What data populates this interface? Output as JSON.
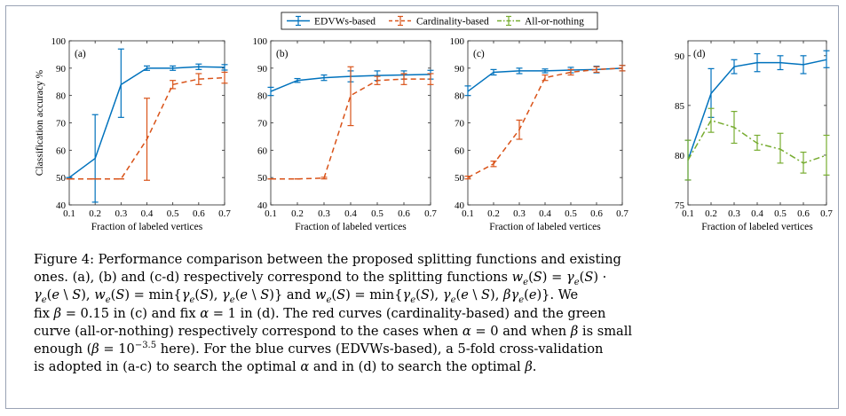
{
  "legend": {
    "entries": [
      {
        "name": "EDVWs-based",
        "color": "#0072bd",
        "style": "solid"
      },
      {
        "name": "Cardinality-based",
        "color": "#d95319",
        "style": "dashed"
      },
      {
        "name": "All-or-nothing",
        "color": "#77ac30",
        "style": "dashdot"
      }
    ],
    "placement": "top-center"
  },
  "chart_data": [
    {
      "type": "line",
      "panel_label": "(a)",
      "xlabel": "Fraction of labeled vertices",
      "ylabel": "Classification accuracy %",
      "xlim": [
        0.1,
        0.7
      ],
      "ylim": [
        40,
        100
      ],
      "xticks": [
        "0.1",
        "0.2",
        "0.3",
        "0.4",
        "0.5",
        "0.6",
        "0.7"
      ],
      "yticks": [
        "40",
        "50",
        "60",
        "70",
        "80",
        "90",
        "100"
      ],
      "grid": false,
      "x": [
        0.1,
        0.2,
        0.3,
        0.4,
        0.5,
        0.6,
        0.7
      ],
      "series": [
        {
          "name": "EDVWs-based",
          "values": [
            50,
            57,
            84,
            90,
            90,
            90.5,
            90.3
          ],
          "low": [
            50,
            41,
            72,
            89.2,
            89.2,
            89.5,
            89.3
          ],
          "high": [
            50,
            73,
            97,
            90.8,
            90.8,
            91.5,
            91.3
          ]
        },
        {
          "name": "Cardinality-based",
          "values": [
            49.5,
            49.5,
            49.5,
            64,
            84,
            86,
            86.5
          ],
          "low": [
            49.5,
            49.5,
            49.5,
            49,
            82.5,
            84,
            84.5
          ],
          "high": [
            49.5,
            49.5,
            49.5,
            79,
            85.5,
            88,
            88.5
          ]
        }
      ]
    },
    {
      "type": "line",
      "panel_label": "(b)",
      "xlabel": "Fraction of labeled vertices",
      "ylabel": "",
      "xlim": [
        0.1,
        0.7
      ],
      "ylim": [
        40,
        100
      ],
      "xticks": [
        "0.1",
        "0.2",
        "0.3",
        "0.4",
        "0.5",
        "0.6",
        "0.7"
      ],
      "yticks": [
        "40",
        "50",
        "60",
        "70",
        "80",
        "90",
        "100"
      ],
      "grid": false,
      "x": [
        0.1,
        0.2,
        0.3,
        0.4,
        0.5,
        0.6,
        0.7
      ],
      "series": [
        {
          "name": "EDVWs-based",
          "values": [
            81.5,
            85.5,
            86.5,
            87,
            87.3,
            87.5,
            87.7
          ],
          "low": [
            80,
            84.8,
            85.5,
            85,
            85.5,
            86,
            86
          ],
          "high": [
            83,
            86.2,
            87.5,
            89,
            89,
            89,
            89.2
          ]
        },
        {
          "name": "Cardinality-based",
          "values": [
            49.5,
            49.5,
            49.8,
            80,
            85.5,
            86,
            86
          ],
          "low": [
            49.5,
            49.5,
            49.5,
            69,
            84,
            84,
            84
          ],
          "high": [
            49.5,
            49.5,
            50.1,
            90.5,
            87,
            88,
            88
          ]
        }
      ]
    },
    {
      "type": "line",
      "panel_label": "(c)",
      "xlabel": "Fraction of labeled vertices",
      "ylabel": "",
      "xlim": [
        0.1,
        0.7
      ],
      "ylim": [
        40,
        100
      ],
      "xticks": [
        "0.1",
        "0.2",
        "0.3",
        "0.4",
        "0.5",
        "0.6",
        "0.7"
      ],
      "yticks": [
        "40",
        "50",
        "60",
        "70",
        "80",
        "90",
        "100"
      ],
      "grid": false,
      "x": [
        0.1,
        0.2,
        0.3,
        0.4,
        0.5,
        0.6,
        0.7
      ],
      "series": [
        {
          "name": "EDVWs-based",
          "values": [
            81.5,
            88.5,
            89,
            89,
            89.3,
            89.5,
            90
          ],
          "low": [
            80,
            87.5,
            88,
            88.3,
            88.3,
            88.3,
            89
          ],
          "high": [
            83.5,
            89.5,
            90,
            89.7,
            90.3,
            90.7,
            91
          ]
        },
        {
          "name": "Cardinality-based",
          "values": [
            50,
            55,
            67.5,
            86.5,
            88.5,
            89.5,
            90
          ],
          "low": [
            49.5,
            54,
            64,
            85.5,
            87.5,
            88.5,
            89
          ],
          "high": [
            50.5,
            56,
            71,
            87.5,
            89.5,
            90.5,
            91
          ]
        }
      ]
    },
    {
      "type": "line",
      "panel_label": "(d)",
      "xlabel": "Fraction of labeled vertices",
      "ylabel": "",
      "xlim": [
        0.1,
        0.7
      ],
      "ylim": [
        75,
        91.5
      ],
      "xticks": [
        "0.1",
        "0.2",
        "0.3",
        "0.4",
        "0.5",
        "0.6",
        "0.7"
      ],
      "yticks": [
        "75",
        "80",
        "85",
        "90"
      ],
      "grid": false,
      "x": [
        0.1,
        0.2,
        0.3,
        0.4,
        0.5,
        0.6,
        0.7
      ],
      "series": [
        {
          "name": "EDVWs-based",
          "values": [
            79.5,
            86.2,
            88.9,
            89.3,
            89.3,
            89.1,
            89.6
          ],
          "low": [
            77.5,
            83.8,
            88.2,
            88.4,
            88.6,
            88.2,
            88.8
          ],
          "high": [
            81.5,
            88.7,
            89.6,
            90.2,
            90,
            90,
            90.5
          ]
        },
        {
          "name": "All-or-nothing",
          "values": [
            79.5,
            83.5,
            82.8,
            81.2,
            80.6,
            79.2,
            80
          ],
          "low": [
            77.5,
            82.3,
            81.2,
            80.5,
            79.2,
            78.2,
            78
          ],
          "high": [
            81.5,
            84.7,
            84.4,
            82,
            82.2,
            80.3,
            82
          ]
        }
      ]
    }
  ],
  "caption": {
    "lines": [
      [
        "Figure 4: Performance comparison between the proposed splitting functions and existing"
      ],
      [
        "ones. (a), (b) and (c-d) respectively correspond to the splitting functions ",
        "w_e(S) = γ_e(S) ·"
      ],
      [
        "γ_e(e \\ S)",
        ", ",
        "w_e(S) = min{γ_e(S), γ_e(e \\ S)}",
        " and ",
        "w_e(S) = min{γ_e(S), γ_e(e \\ S), βγ_e(e)}",
        ". We"
      ],
      [
        "fix ",
        "β = 0.15",
        " in (c) and fix ",
        "α = 1",
        " in (d). The red curves (cardinality-based) and the green"
      ],
      [
        "curve (all-or-nothing) respectively correspond to the cases when ",
        "α = 0",
        " and when ",
        "β",
        " is small"
      ],
      [
        "enough (",
        "β = 10^−3.5",
        " here). For the blue curves (EDVWs-based), a 5-fold cross-validation"
      ],
      [
        "is adopted in (a-c) to search the optimal ",
        "α",
        " and in (d) to search the optimal ",
        "β",
        "."
      ]
    ]
  }
}
